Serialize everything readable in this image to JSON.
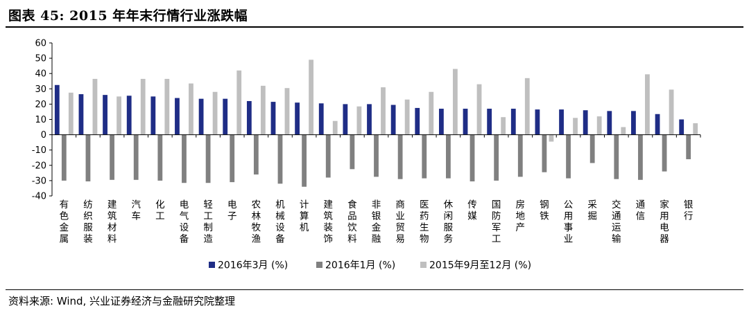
{
  "title": "图表 45: 2015 年年末行情行业涨跌幅",
  "source": "资料来源: Wind, 兴业证券经济与金融研究院整理",
  "colors": {
    "series1": "#1f2d86",
    "series2": "#808080",
    "series3": "#bfbfbf"
  },
  "chart_data": {
    "type": "bar",
    "categories": [
      "有色金属",
      "纺织服装",
      "建筑材料",
      "汽车",
      "化工",
      "电气设备",
      "轻工制造",
      "电子",
      "农林牧渔",
      "机械设备",
      "计算机",
      "建筑装饰",
      "食品饮料",
      "非银金融",
      "商业贸易",
      "医药生物",
      "休闲服务",
      "传媒",
      "国防军工",
      "房地产",
      "钢铁",
      "公用事业",
      "采掘",
      "交通运输",
      "通信",
      "家用电器",
      "银行"
    ],
    "series": [
      {
        "name": "2016年3月 (%)",
        "values": [
          32.5,
          26.5,
          26,
          25.5,
          25,
          24,
          23.5,
          23.5,
          22,
          21.5,
          21,
          20.5,
          20,
          20,
          19.5,
          17.5,
          17,
          17,
          17,
          17,
          16.5,
          16.5,
          16,
          15.5,
          15.5,
          13.5,
          10
        ]
      },
      {
        "name": "2016年1月 (%)",
        "values": [
          -30,
          -30.5,
          -29.5,
          -29.5,
          -30,
          -31.5,
          -31.5,
          -31,
          -26,
          -32,
          -34,
          -28,
          -22.5,
          -27.5,
          -29,
          -28.5,
          -28.5,
          -30.5,
          -30,
          -27.5,
          -24.5,
          -28.5,
          -18.5,
          -29,
          -29.5,
          -24,
          -16
        ]
      },
      {
        "name": "2015年9月至12月 (%)",
        "values": [
          27.5,
          36.5,
          25,
          36.5,
          36.5,
          33.5,
          28,
          42,
          32,
          30.5,
          49,
          9,
          18.5,
          31,
          23,
          28,
          43,
          33,
          11.5,
          37,
          -4.5,
          11,
          12,
          5,
          39.5,
          29.5,
          7.5
        ]
      }
    ],
    "yticks": [
      60,
      50,
      40,
      30,
      20,
      10,
      0,
      -10,
      -20,
      -30,
      -40
    ],
    "ylim": [
      -40,
      60
    ],
    "grid": false,
    "legend_position": "bottom"
  }
}
